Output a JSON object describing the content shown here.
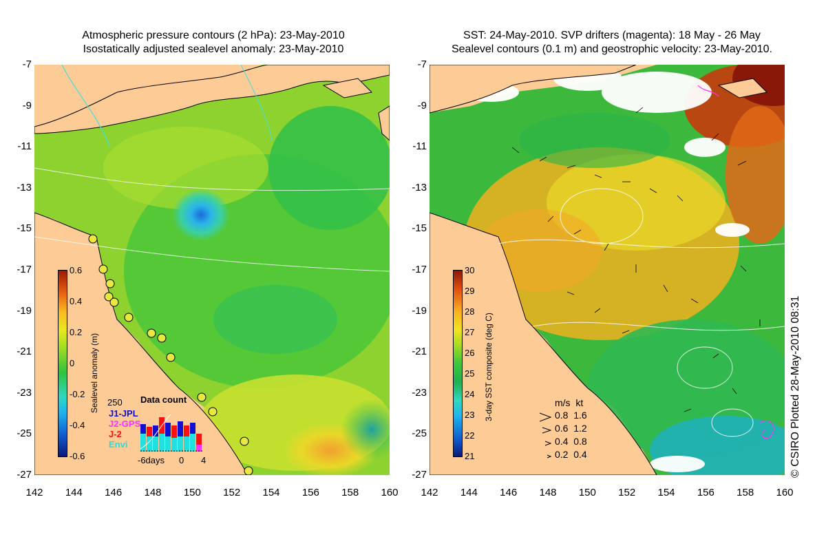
{
  "left_panel": {
    "title_line1": "Atmospheric pressure contours (2 hPa): 23-May-2010",
    "title_line2": "Isostatically adjusted sealevel anomaly: 23-May-2010",
    "colorbar_label": "Sealevel anomaly (m)",
    "colorbar_ticks": [
      "0.6",
      "0.4",
      "0.2",
      "0",
      "-0.2",
      "-0.4",
      "-0.6"
    ],
    "data_count": {
      "title": "Data count",
      "max_label": "250",
      "series": [
        {
          "name": "J1-JPL",
          "color": "#1010d0"
        },
        {
          "name": "J2-GPS",
          "color": "#ff30ff"
        },
        {
          "name": "J-2",
          "color": "#ff1010"
        },
        {
          "name": "Envi",
          "color": "#20e0e0"
        }
      ],
      "axis_labels": [
        "-6days",
        "0",
        "4"
      ]
    }
  },
  "right_panel": {
    "title_line1": "SST: 24-May-2010. SVP drifters (magenta): 18 May - 26 May",
    "title_line2": "Sealevel contours (0.1 m) and geostrophic velocity: 23-May-2010.",
    "colorbar_label": "3-day SST composite (deg C)",
    "colorbar_ticks": [
      "30",
      "29",
      "28",
      "27",
      "26",
      "25",
      "24",
      "23",
      "22",
      "21"
    ],
    "velocity_legend": {
      "header": "m/s  kt",
      "rows": [
        "0.8  1.6",
        "0.6  1.2",
        "0.4  0.8",
        "0.2  0.4"
      ]
    }
  },
  "axes": {
    "y_ticks": [
      "-7",
      "-9",
      "-11",
      "-13",
      "-15",
      "-17",
      "-19",
      "-21",
      "-23",
      "-25",
      "-27"
    ],
    "x_ticks": [
      "142",
      "144",
      "146",
      "148",
      "150",
      "152",
      "154",
      "156",
      "158",
      "160"
    ]
  },
  "copyright": "© CSIRO Plotted 28-May-2010 08:31"
}
